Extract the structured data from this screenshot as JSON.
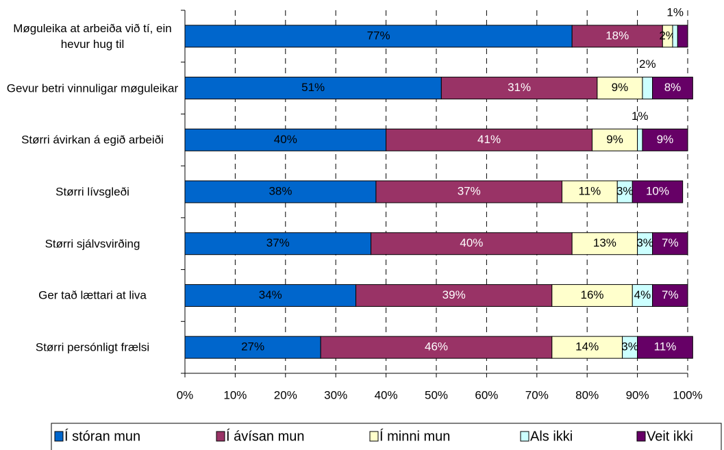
{
  "chart_data": {
    "type": "stacked_barh",
    "categories": [
      "Møguleika at arbeiða við tí, ein hevur hug til",
      "Gevur betri vinnuligar møguleikar",
      "Størri ávirkan á egið arbeiði",
      "Størri lívsgleði",
      "Størri sjálvsvirðing",
      "Ger tað lættari at liva",
      "Størri persónligt frælsi"
    ],
    "series": [
      {
        "name": "Í stóran mun",
        "color": "#0066cc",
        "values": [
          77,
          51,
          40,
          38,
          37,
          34,
          27
        ],
        "value_labels": [
          "77%",
          "51%",
          "40%",
          "38%",
          "37%",
          "34%",
          "27%"
        ]
      },
      {
        "name": "Í ávísan mun",
        "color": "#993366",
        "values": [
          18,
          31,
          41,
          37,
          40,
          39,
          46
        ],
        "value_labels": [
          "18%",
          "31%",
          "41%",
          "37%",
          "40%",
          "39%",
          "46%"
        ]
      },
      {
        "name": "Í minni mun",
        "color": "#ffffcc",
        "values": [
          2,
          9,
          9,
          11,
          13,
          16,
          14
        ],
        "value_labels": [
          "2%",
          "9%",
          "9%",
          "11%",
          "13%",
          "16%",
          "14%"
        ]
      },
      {
        "name": "Als ikki",
        "color": "#ccffff",
        "values": [
          1,
          2,
          1,
          3,
          3,
          4,
          3
        ],
        "value_labels": [
          "1%",
          "2%",
          "1%",
          "3%",
          "3%",
          "4%",
          "3%"
        ]
      },
      {
        "name": "Veit ikki",
        "color": "#660066",
        "values": [
          2,
          8,
          9,
          10,
          7,
          7,
          11
        ],
        "value_labels": [
          null,
          "8%",
          "9%",
          "10%",
          "7%",
          "7%",
          "11%"
        ]
      }
    ],
    "xlim": [
      0,
      100
    ],
    "xticks": [
      {
        "value": 0,
        "label": "0%"
      },
      {
        "value": 10,
        "label": "10%"
      },
      {
        "value": 20,
        "label": "20%"
      },
      {
        "value": 30,
        "label": "30%"
      },
      {
        "value": 40,
        "label": "40%"
      },
      {
        "value": 50,
        "label": "50%"
      },
      {
        "value": 60,
        "label": "60%"
      },
      {
        "value": 70,
        "label": "70%"
      },
      {
        "value": 80,
        "label": "80%"
      },
      {
        "value": 90,
        "label": "90%"
      },
      {
        "value": 100,
        "label": "100%"
      }
    ],
    "grid": true,
    "legend": "bottom"
  }
}
